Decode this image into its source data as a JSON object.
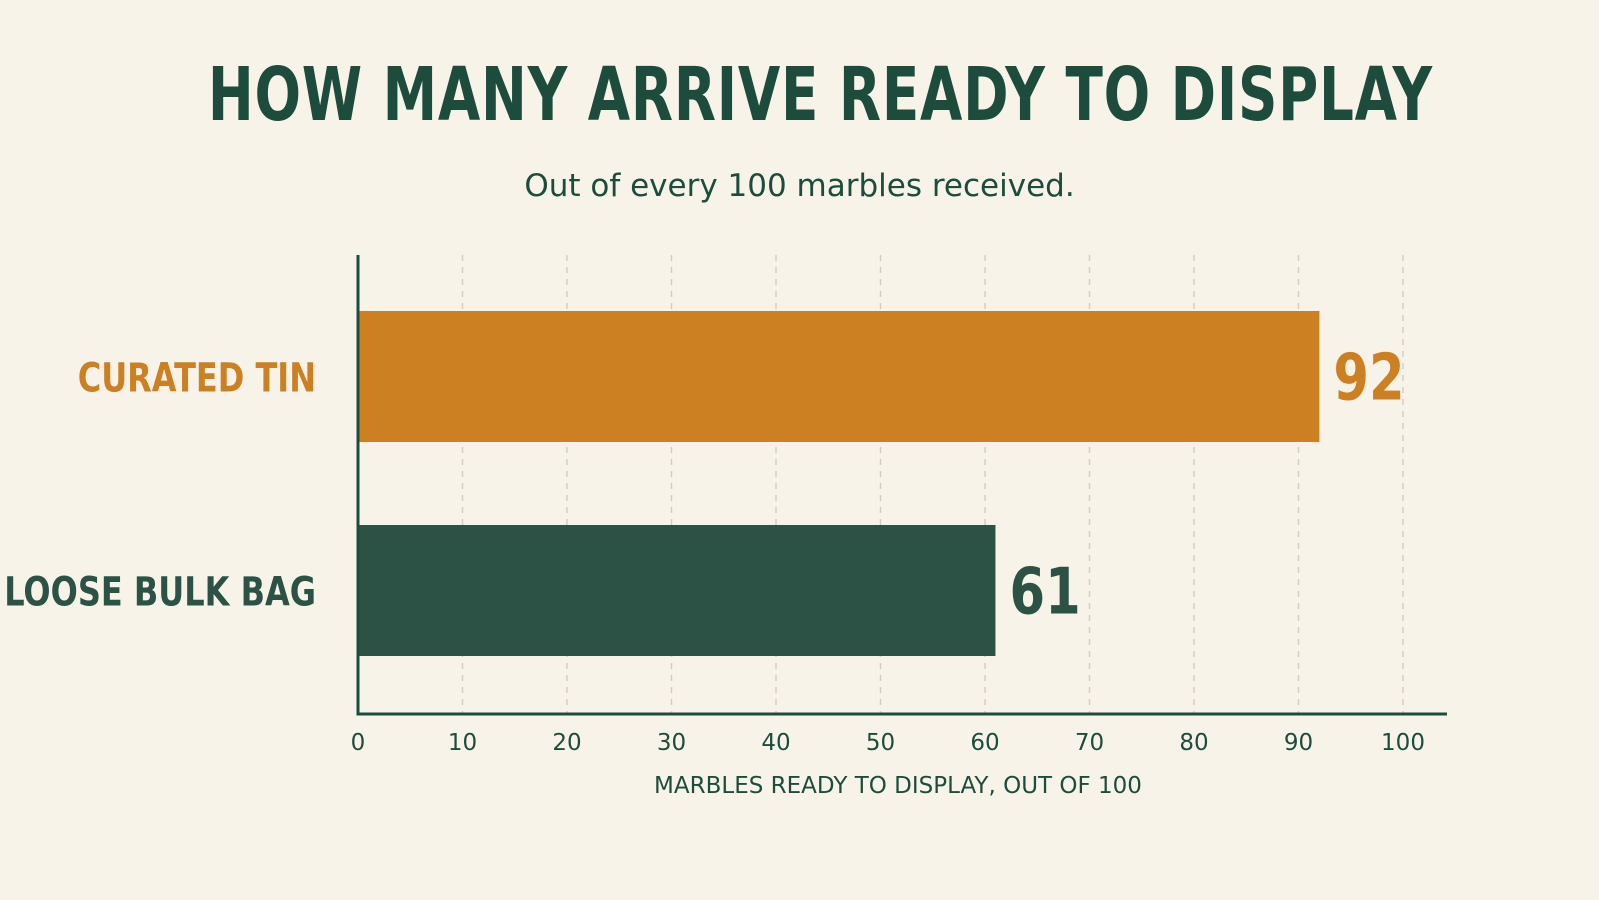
{
  "header": {
    "title": "HOW MANY ARRIVE READY TO DISPLAY",
    "subtitle": "Out of every 100 marbles received."
  },
  "chart_data": {
    "type": "bar",
    "orientation": "horizontal",
    "categories": [
      "CURATED TIN",
      "LOOSE BULK BAG"
    ],
    "values": [
      92,
      61
    ],
    "value_labels": [
      "92",
      "61"
    ],
    "bar_colors": [
      "#cd8021",
      "#2c5245"
    ],
    "xlabel": "MARBLES READY TO DISPLAY, OUT OF 100",
    "ylabel": "",
    "xlim": [
      0,
      100
    ],
    "xticks": [
      "0",
      "10",
      "20",
      "30",
      "40",
      "50",
      "60",
      "70",
      "80",
      "90",
      "100"
    ],
    "grid": "vertical dashed",
    "legend": "none"
  },
  "colors": {
    "background": "#f7f3e8",
    "text": "#1e4c3c",
    "grid": "#d3cfc4"
  }
}
